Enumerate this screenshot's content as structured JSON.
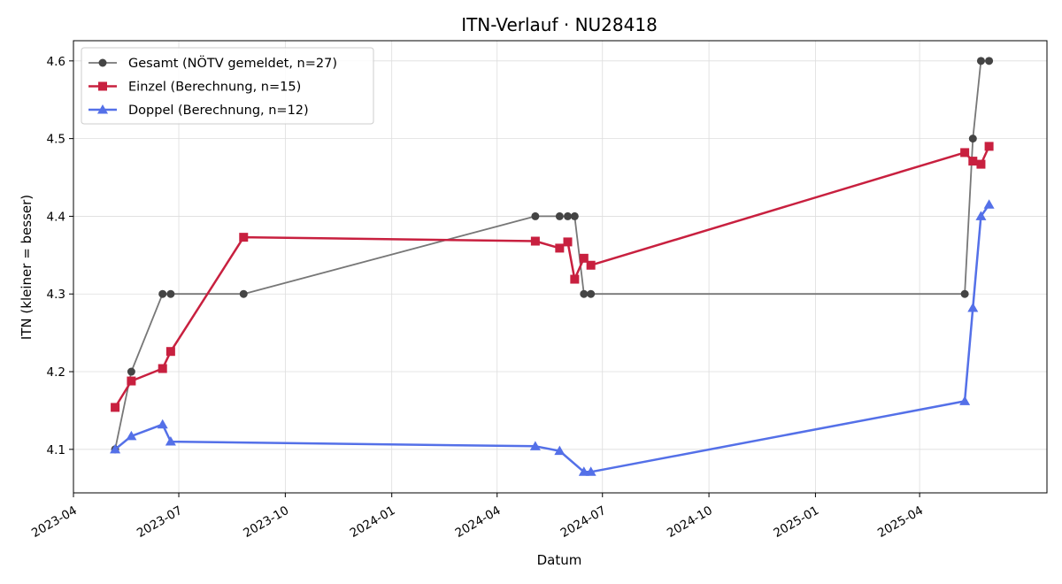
{
  "chart_data": {
    "type": "line",
    "title": "ITN-Verlauf · NU28418",
    "xlabel": "Datum",
    "ylabel": "ITN  (kleiner = besser)",
    "x_axis": {
      "kind": "date",
      "range": [
        "2023-04-01",
        "2025-07-20"
      ],
      "ticks": [
        "2023-04-01",
        "2023-07-01",
        "2023-10-01",
        "2024-01-01",
        "2024-04-01",
        "2024-07-01",
        "2024-10-01",
        "2025-01-01",
        "2025-04-01"
      ],
      "tick_labels": [
        "2023-04",
        "2023-07",
        "2023-10",
        "2024-01",
        "2024-04",
        "2024-07",
        "2024-10",
        "2025-01",
        "2025-04"
      ]
    },
    "y_axis": {
      "range": [
        4.044,
        4.626
      ],
      "ticks": [
        4.1,
        4.2,
        4.3,
        4.4,
        4.5,
        4.6
      ],
      "tick_labels": [
        "4.1",
        "4.2",
        "4.3",
        "4.4",
        "4.5",
        "4.6"
      ]
    },
    "grid": true,
    "legend_position": "top-left",
    "series": [
      {
        "name": "Gesamt (NÖTV gemeldet, n=27)",
        "color": "#777777",
        "marker_color": "#444444",
        "marker": "circle",
        "line_width": 1.8,
        "points": [
          {
            "x": "2023-05-07",
            "y": 4.1
          },
          {
            "x": "2023-05-21",
            "y": 4.2
          },
          {
            "x": "2023-06-17",
            "y": 4.3
          },
          {
            "x": "2023-06-24",
            "y": 4.3
          },
          {
            "x": "2023-08-26",
            "y": 4.3
          },
          {
            "x": "2024-05-04",
            "y": 4.4
          },
          {
            "x": "2024-05-25",
            "y": 4.4
          },
          {
            "x": "2024-06-01",
            "y": 4.4
          },
          {
            "x": "2024-06-07",
            "y": 4.4
          },
          {
            "x": "2024-06-15",
            "y": 4.3
          },
          {
            "x": "2024-06-21",
            "y": 4.3
          },
          {
            "x": "2025-05-10",
            "y": 4.3
          },
          {
            "x": "2025-05-17",
            "y": 4.5
          },
          {
            "x": "2025-05-24",
            "y": 4.6
          },
          {
            "x": "2025-05-31",
            "y": 4.6
          }
        ]
      },
      {
        "name": "Einzel (Berechnung, n=15)",
        "color": "#c8203f",
        "marker_color": "#c8203f",
        "marker": "square",
        "line_width": 2.5,
        "points": [
          {
            "x": "2023-05-07",
            "y": 4.154
          },
          {
            "x": "2023-05-21",
            "y": 4.188
          },
          {
            "x": "2023-06-17",
            "y": 4.204
          },
          {
            "x": "2023-06-24",
            "y": 4.226
          },
          {
            "x": "2023-08-26",
            "y": 4.373
          },
          {
            "x": "2024-05-04",
            "y": 4.368
          },
          {
            "x": "2024-05-25",
            "y": 4.359
          },
          {
            "x": "2024-06-01",
            "y": 4.367
          },
          {
            "x": "2024-06-07",
            "y": 4.319
          },
          {
            "x": "2024-06-15",
            "y": 4.346
          },
          {
            "x": "2024-06-21",
            "y": 4.337
          },
          {
            "x": "2025-05-10",
            "y": 4.482
          },
          {
            "x": "2025-05-17",
            "y": 4.471
          },
          {
            "x": "2025-05-24",
            "y": 4.467
          },
          {
            "x": "2025-05-31",
            "y": 4.49
          }
        ]
      },
      {
        "name": "Doppel (Berechnung, n=12)",
        "color": "#5470e8",
        "marker_color": "#5470e8",
        "marker": "triangle",
        "line_width": 2.5,
        "points": [
          {
            "x": "2023-05-07",
            "y": 4.1
          },
          {
            "x": "2023-05-21",
            "y": 4.117
          },
          {
            "x": "2023-06-17",
            "y": 4.132
          },
          {
            "x": "2023-06-24",
            "y": 4.11
          },
          {
            "x": "2024-05-04",
            "y": 4.104
          },
          {
            "x": "2024-05-25",
            "y": 4.098
          },
          {
            "x": "2024-06-15",
            "y": 4.071
          },
          {
            "x": "2024-06-21",
            "y": 4.071
          },
          {
            "x": "2025-05-10",
            "y": 4.162
          },
          {
            "x": "2025-05-17",
            "y": 4.282
          },
          {
            "x": "2025-05-24",
            "y": 4.4
          },
          {
            "x": "2025-05-31",
            "y": 4.415
          }
        ]
      }
    ]
  }
}
